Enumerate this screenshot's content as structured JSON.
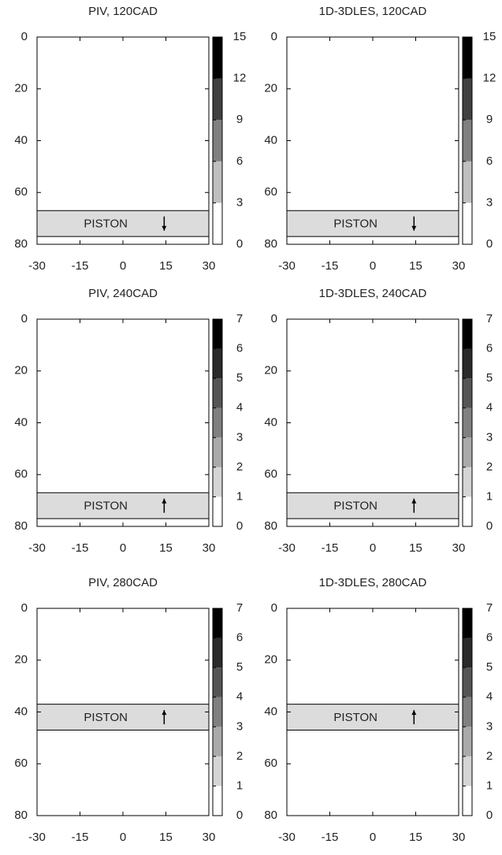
{
  "chart_data": [
    {
      "type": "contour",
      "title": "PIV, 120CAD",
      "xlim": [
        -30,
        30
      ],
      "ylim": [
        0,
        80
      ],
      "invert_y": true,
      "xticks": [
        -30,
        -15,
        0,
        15,
        30
      ],
      "yticks": [
        0,
        20,
        40,
        60,
        80
      ],
      "colorbar": {
        "lim": [
          0,
          15
        ],
        "ticks": [
          0,
          3,
          6,
          9,
          12,
          15
        ]
      },
      "piston": {
        "y": [
          67,
          77
        ],
        "label": "PISTON",
        "direction": "down"
      }
    },
    {
      "type": "contour",
      "title": "1D-3DLES, 120CAD",
      "xlim": [
        -30,
        30
      ],
      "ylim": [
        0,
        80
      ],
      "invert_y": true,
      "xticks": [
        -30,
        -15,
        0,
        15,
        30
      ],
      "yticks": [
        0,
        20,
        40,
        60,
        80
      ],
      "colorbar": {
        "lim": [
          0,
          15
        ],
        "ticks": [
          0,
          3,
          6,
          9,
          12,
          15
        ]
      },
      "piston": {
        "y": [
          67,
          77
        ],
        "label": "PISTON",
        "direction": "down"
      }
    },
    {
      "type": "contour",
      "title": "PIV, 240CAD",
      "xlim": [
        -30,
        30
      ],
      "ylim": [
        0,
        80
      ],
      "invert_y": true,
      "xticks": [
        -30,
        -15,
        0,
        15,
        30
      ],
      "yticks": [
        0,
        20,
        40,
        60,
        80
      ],
      "colorbar": {
        "lim": [
          0,
          7
        ],
        "ticks": [
          0,
          1,
          2,
          3,
          4,
          5,
          6,
          7
        ]
      },
      "piston": {
        "y": [
          67,
          77
        ],
        "label": "PISTON",
        "direction": "up"
      }
    },
    {
      "type": "contour",
      "title": "1D-3DLES, 240CAD",
      "xlim": [
        -30,
        30
      ],
      "ylim": [
        0,
        80
      ],
      "invert_y": true,
      "xticks": [
        -30,
        -15,
        0,
        15,
        30
      ],
      "yticks": [
        0,
        20,
        40,
        60,
        80
      ],
      "colorbar": {
        "lim": [
          0,
          7
        ],
        "ticks": [
          0,
          1,
          2,
          3,
          4,
          5,
          6,
          7
        ]
      },
      "piston": {
        "y": [
          67,
          77
        ],
        "label": "PISTON",
        "direction": "up"
      }
    },
    {
      "type": "contour",
      "title": "PIV, 280CAD",
      "xlim": [
        -30,
        30
      ],
      "ylim": [
        0,
        80
      ],
      "invert_y": true,
      "xticks": [
        -30,
        -15,
        0,
        15,
        30
      ],
      "yticks": [
        0,
        20,
        40,
        60,
        80
      ],
      "colorbar": {
        "lim": [
          0,
          7
        ],
        "ticks": [
          0,
          1,
          2,
          3,
          4,
          5,
          6,
          7
        ]
      },
      "piston": {
        "y": [
          37,
          47
        ],
        "label": "PISTON",
        "direction": "up"
      }
    },
    {
      "type": "contour",
      "title": "1D-3DLES, 280CAD",
      "xlim": [
        -30,
        30
      ],
      "ylim": [
        0,
        80
      ],
      "invert_y": true,
      "xticks": [
        -30,
        -15,
        0,
        15,
        30
      ],
      "yticks": [
        0,
        20,
        40,
        60,
        80
      ],
      "colorbar": {
        "lim": [
          0,
          7
        ],
        "ticks": [
          0,
          1,
          2,
          3,
          4,
          5,
          6,
          7
        ]
      },
      "piston": {
        "y": [
          37,
          47
        ],
        "label": "PISTON",
        "direction": "up"
      }
    }
  ]
}
